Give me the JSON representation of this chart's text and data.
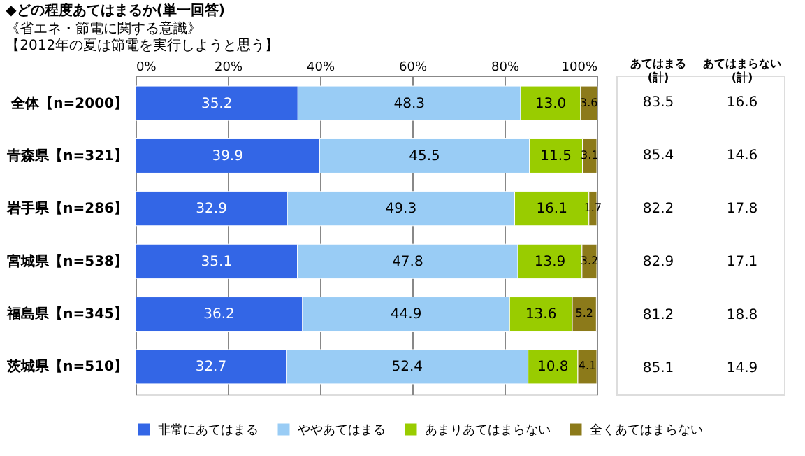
{
  "chart_data": {
    "type": "bar",
    "orientation": "horizontal",
    "stacked": true,
    "title": "◆どの程度あてはまるか(単一回答)",
    "subtitle": "《省エネ・節電に関する意識》",
    "categories": [
      "全体【n=2000】",
      "青森県【n=321】",
      "岩手県【n=286】",
      "宮城県【n=538】",
      "福島県【n=345】",
      "茨城県【n=510】"
    ],
    "series": [
      {
        "name": "非常にあてはまる",
        "color": "#3366e6",
        "values": [
          35.2,
          39.9,
          32.9,
          35.1,
          36.2,
          32.7
        ],
        "value_labels": [
          "35.2",
          "39.9",
          "32.9",
          "35.1",
          "36.2",
          "32.7"
        ]
      },
      {
        "name": "ややあてはまる",
        "color": "#99ccf5",
        "values": [
          48.3,
          45.5,
          49.3,
          47.8,
          44.9,
          52.4
        ],
        "value_labels": [
          "48.3",
          "45.5",
          "49.3",
          "47.8",
          "44.9",
          "52.4"
        ]
      },
      {
        "name": "あまりあてはまらない",
        "color": "#99cc00",
        "values": [
          13.0,
          11.5,
          16.1,
          13.9,
          13.6,
          10.8
        ],
        "value_labels": [
          "13.0",
          "11.5",
          "16.1",
          "13.9",
          "13.6",
          "10.8"
        ]
      },
      {
        "name": "全くあてはまらない",
        "color": "#8c7a1a",
        "values": [
          3.6,
          3.1,
          1.7,
          3.2,
          5.2,
          4.1
        ],
        "value_labels": [
          "3.6",
          "3.1",
          "1.7",
          "3.2",
          "5.2",
          "4.1"
        ]
      }
    ],
    "xlim": [
      0,
      100
    ],
    "xticks": [
      {
        "value": 0,
        "label": "0%"
      },
      {
        "value": 20,
        "label": "20%"
      },
      {
        "value": 40,
        "label": "40%"
      },
      {
        "value": 60,
        "label": "60%"
      },
      {
        "value": 80,
        "label": "80%"
      },
      {
        "value": 100,
        "label": "100%"
      }
    ],
    "grid": "x",
    "legend": "bottom",
    "annotations": [
      "【2012年の夏は節電を実行しようと思う】",
      "あてはまる(計)",
      "あてはまらない(計)",
      "83.5",
      "16.6",
      "85.4",
      "14.6",
      "82.2",
      "17.8",
      "82.9",
      "17.1",
      "81.2",
      "18.8",
      "85.1",
      "14.9"
    ]
  }
}
